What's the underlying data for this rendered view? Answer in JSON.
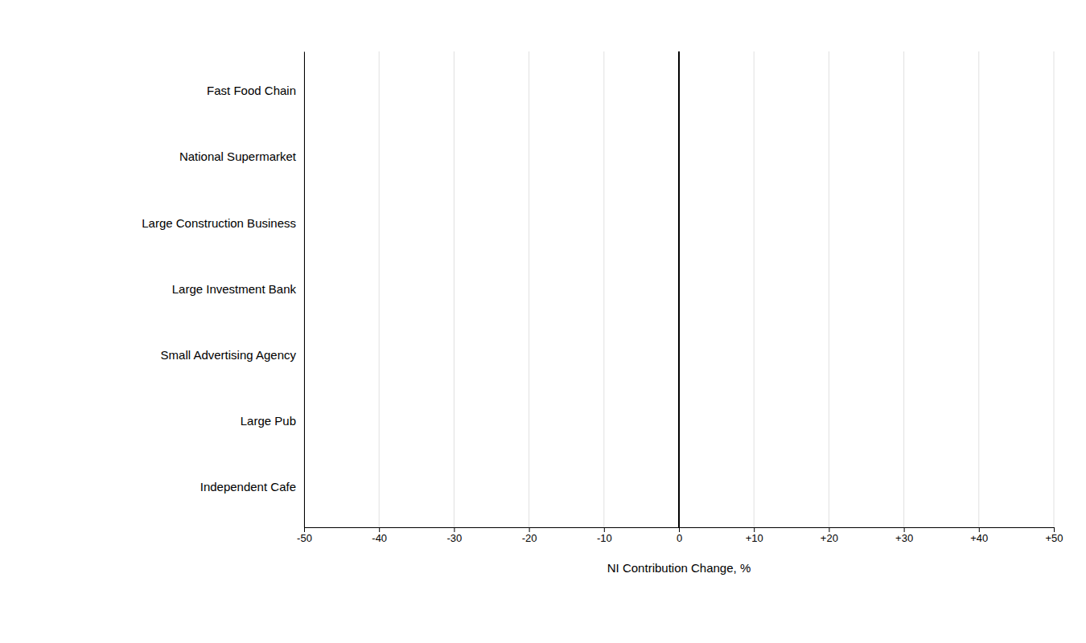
{
  "chart_data": {
    "type": "bar",
    "orientation": "horizontal",
    "categories": [
      "Independent Cafe",
      "Large Pub",
      "Small Advertising Agency",
      "Large Investment Bank",
      "Large Construction Business",
      "National Supermarket",
      "Fast Food Chain"
    ],
    "values": [
      0,
      0,
      0,
      0,
      0,
      0,
      0
    ],
    "xlabel": "NI Contribution Change, %",
    "xlim": [
      -50,
      50
    ],
    "xticks": [
      -50,
      -40,
      -30,
      -20,
      -10,
      0,
      {
        "value": 10,
        "label": "+10"
      },
      {
        "value": 20,
        "label": "+20"
      },
      {
        "value": 30,
        "label": "+30"
      },
      {
        "value": 40,
        "label": "+40"
      },
      {
        "value": 50,
        "label": "+50"
      }
    ],
    "grid": true
  }
}
